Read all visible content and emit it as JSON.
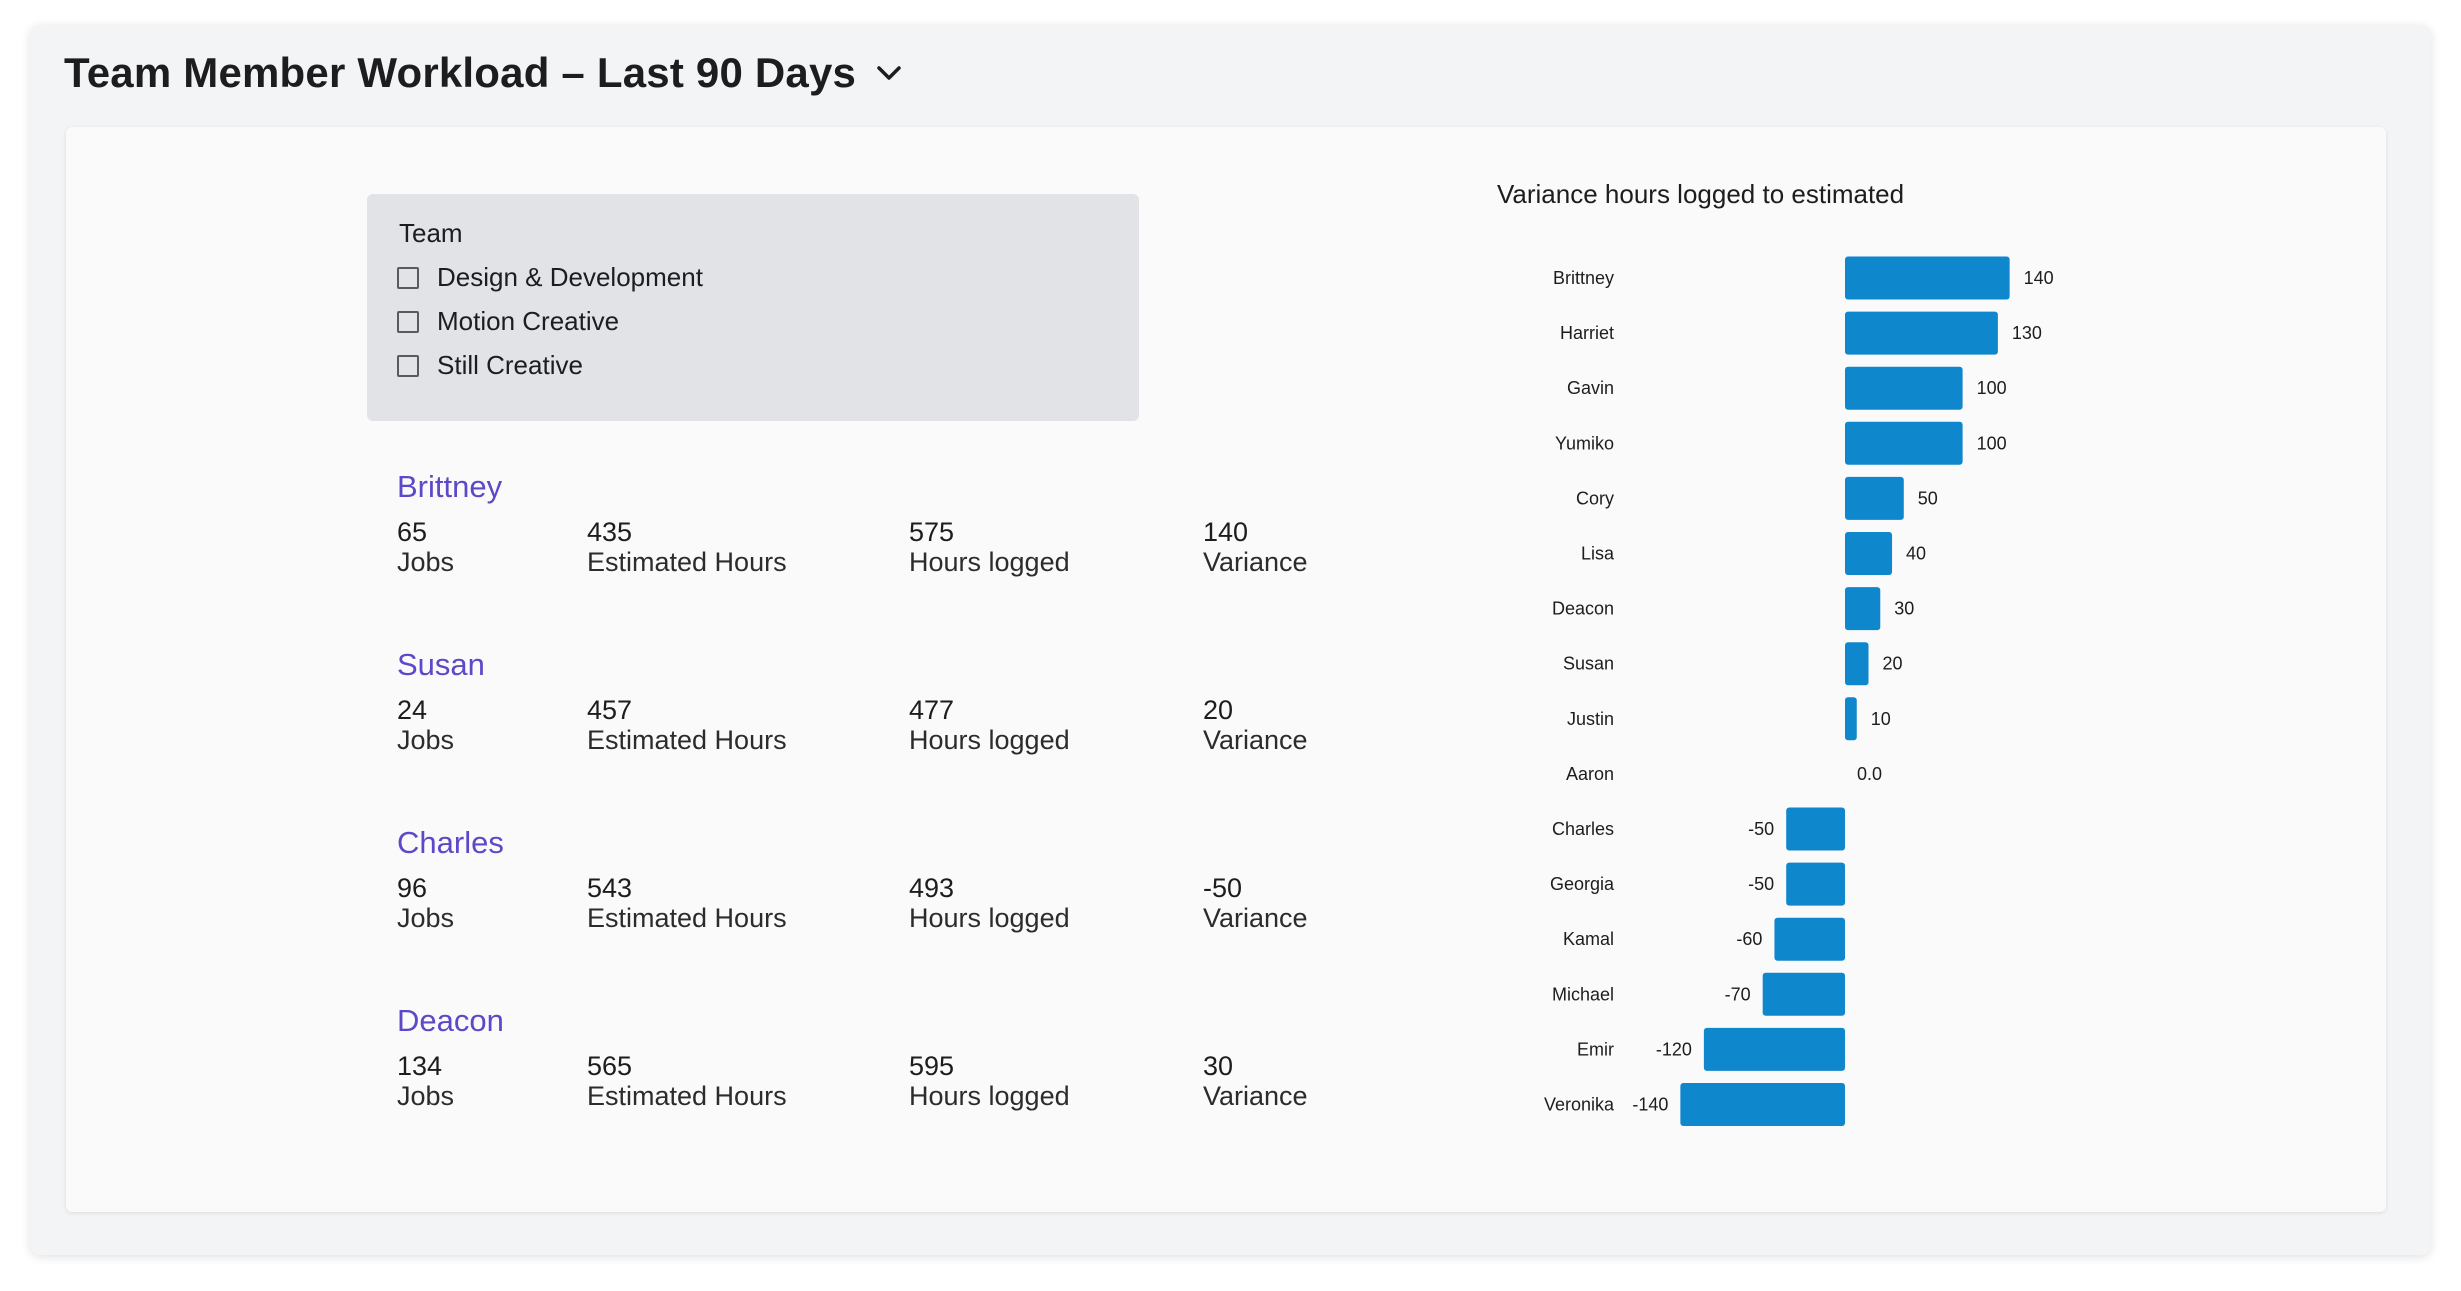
{
  "header": {
    "title": "Team Member Workload – Last 90 Days"
  },
  "filter": {
    "title": "Team",
    "options": [
      {
        "label": "Design & Development",
        "checked": false
      },
      {
        "label": "Motion Creative",
        "checked": false
      },
      {
        "label": "Still Creative",
        "checked": false
      }
    ]
  },
  "members": [
    {
      "name": "Brittney",
      "jobs": "65",
      "jobs_label": "Jobs",
      "estimated": "435",
      "estimated_label": "Estimated Hours",
      "logged": "575",
      "logged_label": "Hours logged",
      "variance": "140",
      "variance_label": "Variance"
    },
    {
      "name": "Susan",
      "jobs": "24",
      "jobs_label": "Jobs",
      "estimated": "457",
      "estimated_label": "Estimated Hours",
      "logged": "477",
      "logged_label": "Hours logged",
      "variance": "20",
      "variance_label": "Variance"
    },
    {
      "name": "Charles",
      "jobs": "96",
      "jobs_label": "Jobs",
      "estimated": "543",
      "estimated_label": "Estimated Hours",
      "logged": "493",
      "logged_label": "Hours logged",
      "variance": "-50",
      "variance_label": "Variance"
    },
    {
      "name": "Deacon",
      "jobs": "134",
      "jobs_label": "Jobs",
      "estimated": "565",
      "estimated_label": "Estimated Hours",
      "logged": "595",
      "logged_label": "Hours logged",
      "variance": "30",
      "variance_label": "Variance"
    }
  ],
  "colors": {
    "bar": "#0f87cd",
    "member_name": "#5b49c8"
  },
  "icons": {
    "title_dropdown": "chevron-down-icon"
  },
  "chart_data": {
    "type": "bar",
    "orientation": "horizontal",
    "title": "Variance hours logged to estimated",
    "categories": [
      "Brittney",
      "Harriet",
      "Gavin",
      "Yumiko",
      "Cory",
      "Lisa",
      "Deacon",
      "Susan",
      "Justin",
      "Aaron",
      "Charles",
      "Georgia",
      "Kamal",
      "Michael",
      "Emir",
      "Veronika"
    ],
    "values": [
      140,
      130,
      100,
      100,
      50,
      40,
      30,
      20,
      10,
      0,
      -50,
      -50,
      -60,
      -70,
      -120,
      -140
    ],
    "value_labels": [
      "140",
      "130",
      "100",
      "100",
      "50",
      "40",
      "30",
      "20",
      "10",
      "0.0",
      "-50",
      "-50",
      "-60",
      "-70",
      "-120",
      "-140"
    ],
    "xlim": [
      -140,
      140
    ],
    "grid": false,
    "legend": "none"
  }
}
